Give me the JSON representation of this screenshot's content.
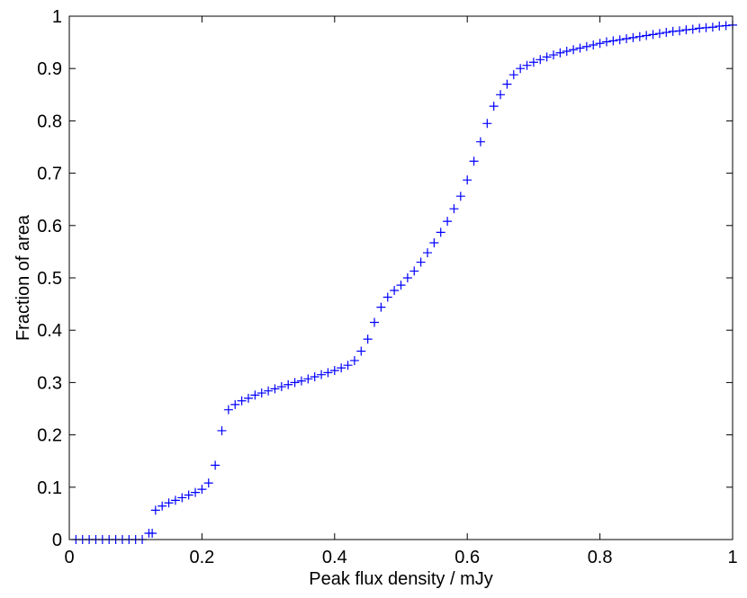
{
  "chart_data": {
    "type": "scatter",
    "marker": "plus",
    "marker_color": "#0000ff",
    "axis_color": "#000000",
    "background": "#ffffff",
    "title": "",
    "xlabel": "Peak flux density / mJy",
    "ylabel": "Fraction of area",
    "xlim": [
      0,
      1
    ],
    "ylim": [
      0,
      1
    ],
    "grid": false,
    "legend": "none",
    "x_ticks": [
      0,
      0.2,
      0.4,
      0.6,
      0.8,
      1
    ],
    "x_tick_labels": [
      "0",
      "0.2",
      "0.4",
      "0.6",
      "0.8",
      "1"
    ],
    "y_ticks": [
      0,
      0.1,
      0.2,
      0.3,
      0.4,
      0.5,
      0.6,
      0.7,
      0.8,
      0.9,
      1
    ],
    "y_tick_labels": [
      "0",
      "0.1",
      "0.2",
      "0.3",
      "0.4",
      "0.5",
      "0.6",
      "0.7",
      "0.8",
      "0.9",
      "1"
    ],
    "series": [
      {
        "x": [
          0.01,
          0.02,
          0.03,
          0.04,
          0.05,
          0.06,
          0.07,
          0.08,
          0.09,
          0.1,
          0.11,
          0.12,
          0.125,
          0.13,
          0.14,
          0.15,
          0.16,
          0.17,
          0.18,
          0.19,
          0.2,
          0.21,
          0.22,
          0.23,
          0.24,
          0.25,
          0.26,
          0.27,
          0.28,
          0.29,
          0.3,
          0.31,
          0.32,
          0.33,
          0.34,
          0.35,
          0.36,
          0.37,
          0.38,
          0.39,
          0.4,
          0.41,
          0.42,
          0.43,
          0.44,
          0.45,
          0.46,
          0.47,
          0.48,
          0.49,
          0.5,
          0.51,
          0.52,
          0.53,
          0.54,
          0.55,
          0.56,
          0.57,
          0.58,
          0.59,
          0.6,
          0.61,
          0.62,
          0.63,
          0.64,
          0.65,
          0.66,
          0.67,
          0.68,
          0.69,
          0.7,
          0.71,
          0.72,
          0.73,
          0.74,
          0.75,
          0.76,
          0.77,
          0.78,
          0.79,
          0.8,
          0.81,
          0.82,
          0.83,
          0.84,
          0.85,
          0.86,
          0.87,
          0.88,
          0.89,
          0.9,
          0.91,
          0.92,
          0.93,
          0.94,
          0.95,
          0.96,
          0.97,
          0.98,
          0.99,
          1.0
        ],
        "y": [
          0,
          0,
          0,
          0,
          0,
          0,
          0,
          0,
          0,
          0,
          0,
          0.012,
          0.012,
          0.056,
          0.064,
          0.07,
          0.075,
          0.08,
          0.085,
          0.09,
          0.096,
          0.108,
          0.142,
          0.208,
          0.248,
          0.258,
          0.265,
          0.27,
          0.276,
          0.28,
          0.284,
          0.288,
          0.292,
          0.296,
          0.3,
          0.303,
          0.307,
          0.311,
          0.315,
          0.319,
          0.323,
          0.328,
          0.333,
          0.342,
          0.36,
          0.383,
          0.415,
          0.444,
          0.463,
          0.476,
          0.486,
          0.5,
          0.513,
          0.53,
          0.548,
          0.567,
          0.587,
          0.608,
          0.632,
          0.656,
          0.687,
          0.723,
          0.76,
          0.795,
          0.828,
          0.85,
          0.87,
          0.888,
          0.9,
          0.906,
          0.912,
          0.917,
          0.922,
          0.926,
          0.93,
          0.933,
          0.936,
          0.939,
          0.942,
          0.945,
          0.948,
          0.951,
          0.953,
          0.955,
          0.957,
          0.959,
          0.961,
          0.963,
          0.965,
          0.967,
          0.969,
          0.971,
          0.972,
          0.974,
          0.975,
          0.977,
          0.978,
          0.979,
          0.981,
          0.982,
          0.983
        ]
      }
    ]
  }
}
